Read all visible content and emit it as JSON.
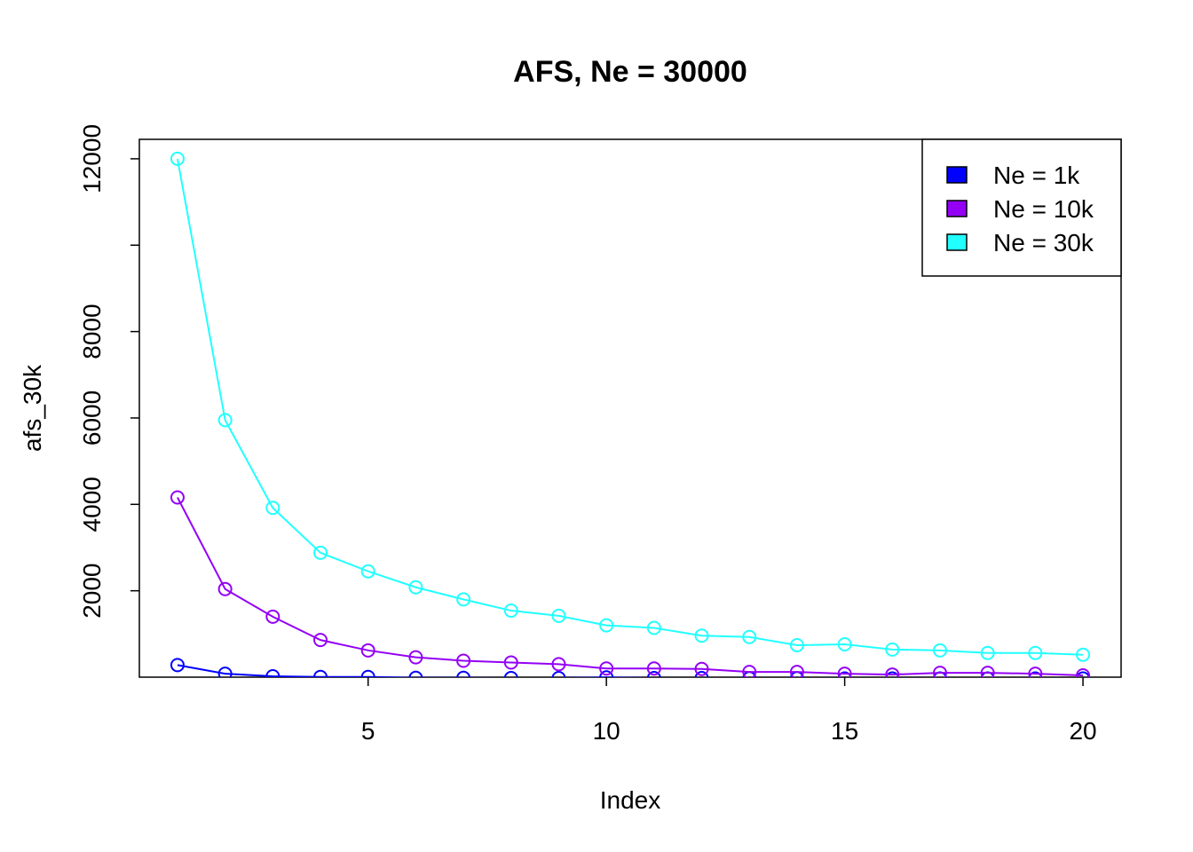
{
  "chart_data": {
    "type": "line",
    "title": "AFS, Ne = 30000",
    "xlabel": "Index",
    "ylabel": "afs_30k",
    "x": [
      1,
      2,
      3,
      4,
      5,
      6,
      7,
      8,
      9,
      10,
      11,
      12,
      13,
      14,
      15,
      16,
      17,
      18,
      19,
      20
    ],
    "xlim": [
      0.2,
      20.8
    ],
    "ylim": [
      0,
      12450
    ],
    "x_ticks": [
      5,
      10,
      15,
      20
    ],
    "y_ticks": [
      2000,
      4000,
      6000,
      8000,
      10000,
      12000
    ],
    "y_tick_labels": [
      "2000",
      "4000",
      "6000",
      "8000",
      "",
      "12000"
    ],
    "markers": "open-circle",
    "grid": false,
    "legend_position": "top-right",
    "series": [
      {
        "name": "Ne = 1k",
        "color": "#0000FF",
        "values": [
          280,
          80,
          20,
          5,
          5,
          -15,
          -15,
          -20,
          -20,
          -5,
          -20,
          -20,
          -25,
          -25,
          -30,
          -30,
          -30,
          -30,
          -30,
          -30
        ]
      },
      {
        "name": "Ne = 10k",
        "color": "#9400F5",
        "values": [
          4160,
          2040,
          1400,
          860,
          620,
          460,
          380,
          340,
          300,
          200,
          200,
          190,
          120,
          120,
          80,
          60,
          100,
          100,
          80,
          40
        ]
      },
      {
        "name": "Ne = 30k",
        "color": "#22FFFF",
        "values": [
          12000,
          5950,
          3920,
          2880,
          2450,
          2080,
          1800,
          1540,
          1420,
          1200,
          1140,
          960,
          930,
          740,
          760,
          640,
          620,
          560,
          560,
          520
        ]
      }
    ]
  }
}
